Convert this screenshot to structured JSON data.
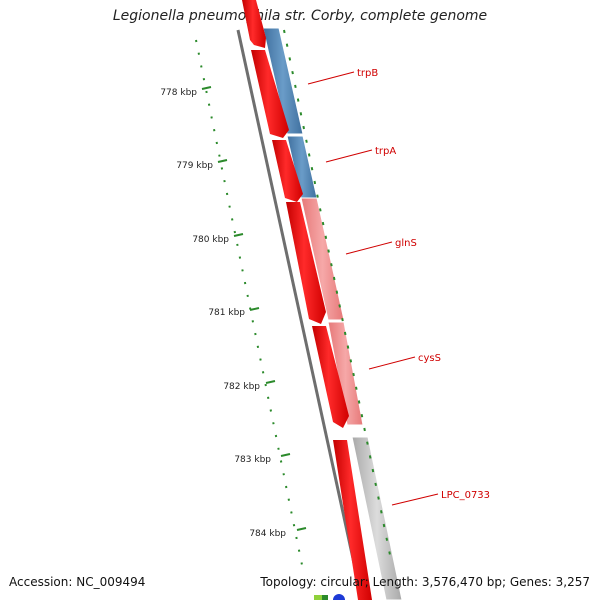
{
  "title": "Legionella pneumophila str. Corby, complete genome",
  "footer": {
    "accession": "Accession: NC_009494",
    "stats": "Topology: circular; Length: 3,576,470 bp; Genes: 3,257"
  },
  "ticks": [
    "778 kbp",
    "779 kbp",
    "780 kbp",
    "781 kbp",
    "782 kbp",
    "783 kbp",
    "784 kbp"
  ],
  "genes": [
    "trpB",
    "trpA",
    "glnS",
    "cysS",
    "LPC_0733"
  ],
  "colors": {
    "cds_forward": "#ff0000",
    "gene_blue": "#4a7fb0",
    "gene_pink": "#f08a8a",
    "gene_gray": "#c4c4c4",
    "gc_skew": "#2b8a2b",
    "label": "#d00000"
  }
}
